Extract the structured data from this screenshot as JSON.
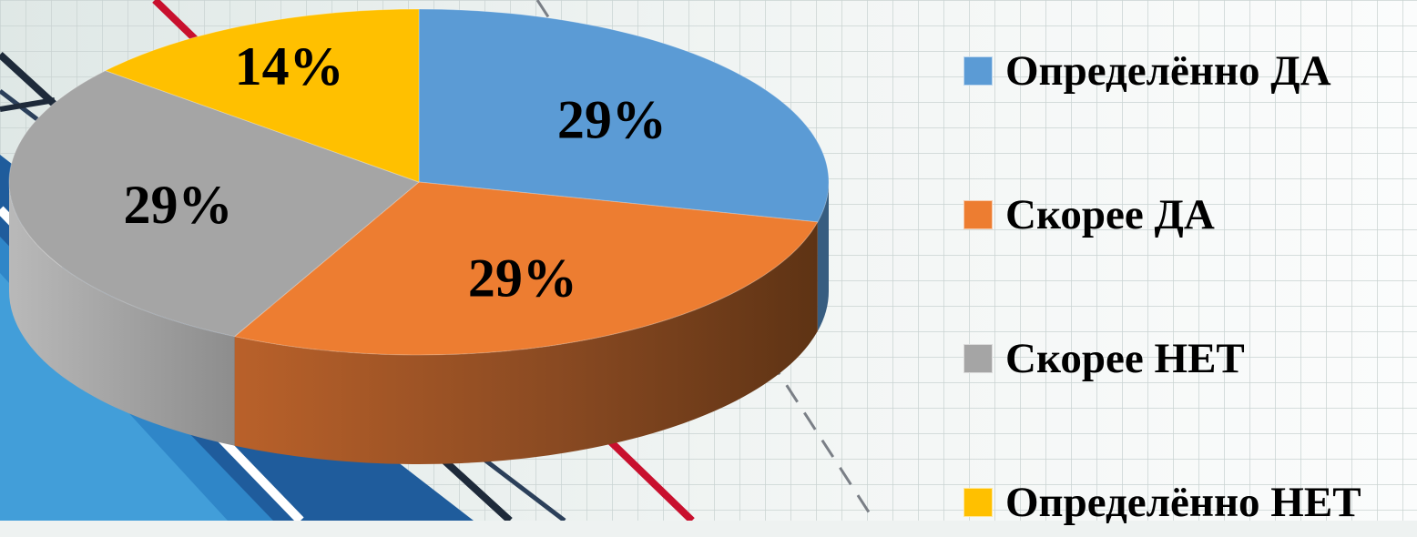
{
  "chart_data": {
    "type": "pie",
    "style": "3d",
    "slices": [
      {
        "label": "Определённо ДА",
        "value": 29,
        "display": "29%",
        "color": "#5b9bd5"
      },
      {
        "label": "Скорее ДА",
        "value": 29,
        "display": "29%",
        "color": "#ed7d31"
      },
      {
        "label": "Скорее НЕТ",
        "value": 29,
        "display": "29%",
        "color": "#a5a5a5"
      },
      {
        "label": "Определённо НЕТ",
        "value": 14,
        "display": "14%",
        "color": "#ffc000"
      }
    ],
    "legend_position": "right"
  }
}
